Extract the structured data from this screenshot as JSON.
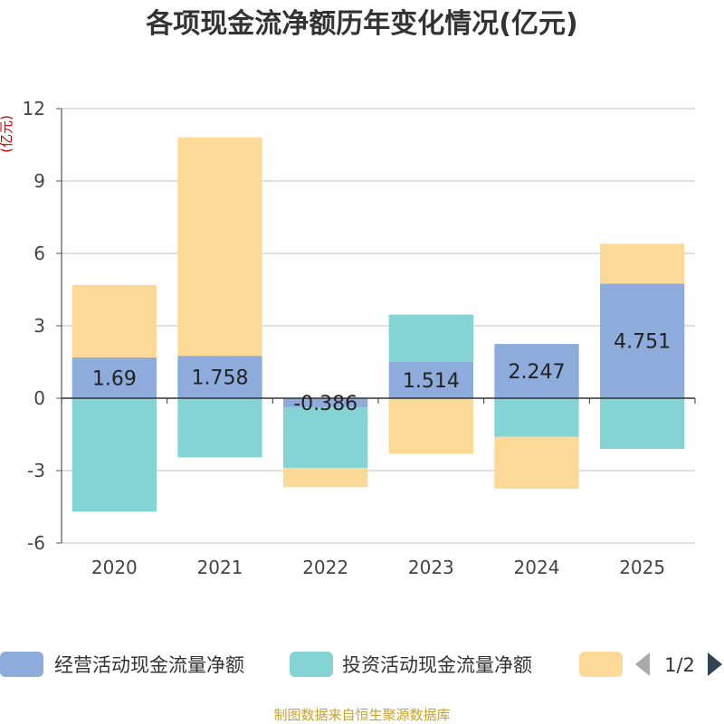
{
  "chart_data": {
    "type": "bar",
    "stacked": true,
    "title": "各项现金流净额历年变化情况(亿元)",
    "ylabel": "(亿元)",
    "xlabel": "",
    "categories": [
      "2020",
      "2021",
      "2022",
      "2023",
      "2024",
      "2025"
    ],
    "ylim": [
      -6,
      12
    ],
    "yticks": [
      -6,
      -3,
      0,
      3,
      6,
      9,
      12
    ],
    "grid": true,
    "series": [
      {
        "name": "经营活动现金流量净额",
        "color": "#8eacdb",
        "values": [
          1.69,
          1.758,
          -0.386,
          1.514,
          2.247,
          4.751
        ],
        "labels": [
          "1.69",
          "1.758",
          "-0.386",
          "1.514",
          "2.247",
          "4.751"
        ]
      },
      {
        "name": "投资活动现金流量净额",
        "color": "#84d4d6",
        "values": [
          -4.7,
          -2.45,
          -2.5,
          1.95,
          -1.6,
          -2.1
        ]
      },
      {
        "name": "",
        "color": "#fdd998",
        "values": [
          3.0,
          9.05,
          -0.8,
          -2.3,
          -2.15,
          1.65
        ]
      }
    ],
    "legend": {
      "position": "bottom",
      "page": "1/2"
    }
  },
  "source": "制图数据来自恒生聚源数据库"
}
